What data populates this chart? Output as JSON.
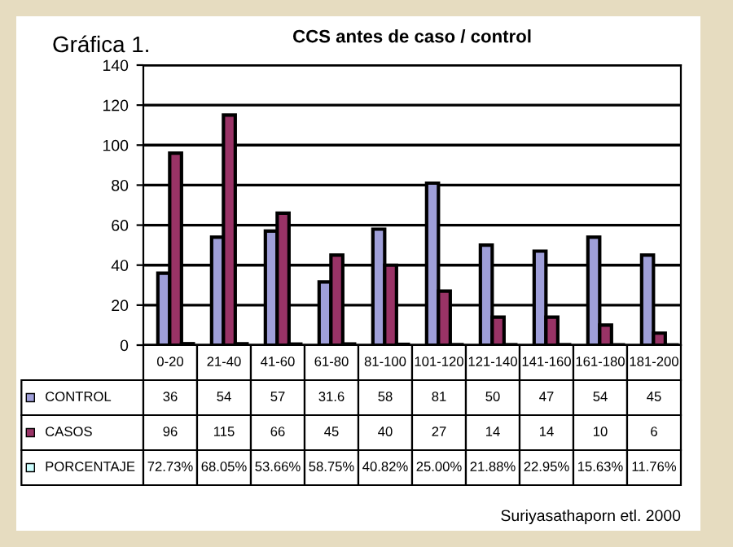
{
  "chart_data": {
    "type": "bar",
    "title": "CCS antes de caso / control",
    "annotations": [
      "Gráfica 1.",
      "Suriyasathaporn etl. 2000"
    ],
    "categories": [
      "0-20",
      "21-40",
      "41-60",
      "61-80",
      "81-100",
      "101-120",
      "121-140",
      "141-160",
      "161-180",
      "181-200"
    ],
    "series": [
      {
        "name": "CONTROL",
        "color": "#9f9fd9",
        "values": [
          36,
          54,
          57,
          31.6,
          58,
          81,
          50,
          47,
          54,
          45
        ],
        "value_labels": [
          "36",
          "54",
          "57",
          "31.6",
          "58",
          "81",
          "50",
          "47",
          "54",
          "45"
        ]
      },
      {
        "name": "CASOS",
        "color": "#993366",
        "values": [
          96,
          115,
          66,
          45,
          40,
          27,
          14,
          14,
          10,
          6
        ],
        "value_labels": [
          "96",
          "115",
          "66",
          "45",
          "40",
          "27",
          "14",
          "14",
          "10",
          "6"
        ]
      },
      {
        "name": "PORCENTAJE",
        "color": "#ccffff",
        "values": [
          0.7273,
          0.6805,
          0.5366,
          0.5875,
          0.4082,
          0.25,
          0.2188,
          0.2295,
          0.1563,
          0.1176
        ],
        "value_labels": [
          "72.73%",
          "68.05%",
          "53.66%",
          "58.75%",
          "40.82%",
          "25.00%",
          "21.88%",
          "22.95%",
          "15.63%",
          "11.76%"
        ]
      }
    ],
    "ylim": [
      0,
      140
    ],
    "yticks": [
      0,
      20,
      40,
      60,
      80,
      100,
      120,
      140
    ],
    "grid": "y",
    "legend": "bottom"
  }
}
